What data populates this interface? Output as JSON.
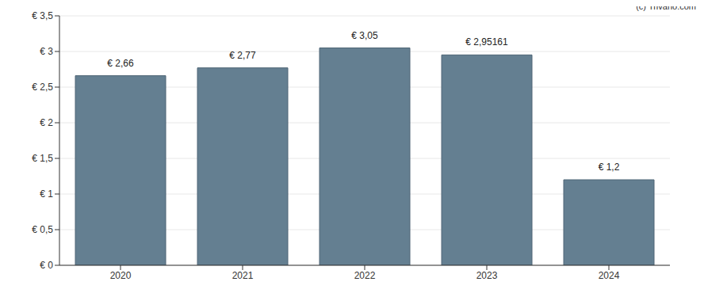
{
  "chart_data": {
    "type": "bar",
    "annotation": "(c) Trivano.com",
    "categories": [
      "2020",
      "2021",
      "2022",
      "2023",
      "2024"
    ],
    "values": [
      2.66,
      2.77,
      3.05,
      2.95161,
      1.2
    ],
    "value_labels": [
      "€ 2,66",
      "€ 2,77",
      "€ 3,05",
      "€ 2,95161",
      "€ 1,2"
    ],
    "data_labels": true,
    "color": "#647f91",
    "ylim": [
      0,
      3.5
    ],
    "yticks": [
      {
        "value": 0,
        "label": "€ 0"
      },
      {
        "value": 0.5,
        "label": "€ 0,5"
      },
      {
        "value": 1,
        "label": "€ 1"
      },
      {
        "value": 1.5,
        "label": "€ 1,5"
      },
      {
        "value": 2,
        "label": "€ 2"
      },
      {
        "value": 2.5,
        "label": "€ 2,5"
      },
      {
        "value": 3,
        "label": "€ 3"
      },
      {
        "value": 3.5,
        "label": "€ 3,5"
      }
    ],
    "grid": true
  }
}
